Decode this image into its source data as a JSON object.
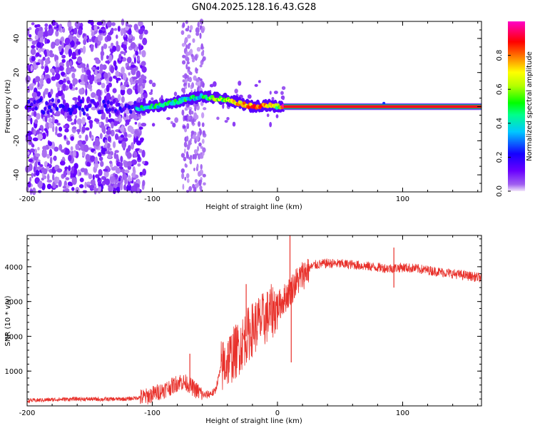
{
  "figure": {
    "title": "GN04.2025.128.16.43.G28"
  },
  "chart_data": [
    {
      "type": "heatmap",
      "name": "spectrogram",
      "xlabel": "Height of straight line (km)",
      "ylabel": "Frequency (Hz)",
      "xlim": [
        -200,
        163
      ],
      "ylim": [
        -50,
        50
      ],
      "xticks": [
        "-200",
        "-100",
        "0",
        "100"
      ],
      "yticks": [
        "-40",
        "-20",
        "0",
        "20",
        "40"
      ],
      "colorbar": {
        "label": "Normalized spectral amplitude",
        "range": [
          0,
          1
        ],
        "ticks": [
          "0.0",
          "0.2",
          "0.4",
          "0.6",
          "0.8"
        ],
        "colormap": "rainbow (violet-blue-cyan-green-yellow-red-magenta)"
      },
      "ridge_points": [
        {
          "x": -200,
          "y": 0,
          "amp": 0.1
        },
        {
          "x": -150,
          "y": 0,
          "amp": 0.25
        },
        {
          "x": -113,
          "y": -1,
          "amp": 0.4
        },
        {
          "x": -100,
          "y": 0,
          "amp": 0.4
        },
        {
          "x": -90,
          "y": 1,
          "amp": 0.45
        },
        {
          "x": -75,
          "y": 4,
          "amp": 0.45
        },
        {
          "x": -60,
          "y": 6,
          "amp": 0.4
        },
        {
          "x": -50,
          "y": 5,
          "amp": 0.55
        },
        {
          "x": -40,
          "y": 4,
          "amp": 0.6
        },
        {
          "x": -30,
          "y": 2,
          "amp": 0.75
        },
        {
          "x": -20,
          "y": 0,
          "amp": 0.8
        },
        {
          "x": -10,
          "y": 1,
          "amp": 0.85
        },
        {
          "x": 0,
          "y": 0,
          "amp": 0.5
        },
        {
          "x": 5,
          "y": 0,
          "amp": 0.9
        },
        {
          "x": 163,
          "y": 0,
          "amp": 0.95
        }
      ]
    },
    {
      "type": "line",
      "name": "snr",
      "xlabel": "Height of straight line (km)",
      "ylabel": "SNR (10 * v/v)",
      "xlim": [
        -200,
        163
      ],
      "ylim": [
        0,
        4900
      ],
      "xticks": [
        "-200",
        "-100",
        "0",
        "100"
      ],
      "yticks": [
        "1000",
        "2000",
        "3000",
        "4000"
      ],
      "color": "#e8302a",
      "series": [
        {
          "name": "SNR",
          "x": [
            -200,
            -180,
            -160,
            -140,
            -120,
            -105,
            -95,
            -85,
            -78,
            -72,
            -65,
            -58,
            -50,
            -45,
            -40,
            -35,
            -30,
            -25,
            -20,
            -15,
            -10,
            -5,
            0,
            5,
            10,
            15,
            20,
            25,
            30,
            40,
            50,
            60,
            70,
            80,
            90,
            100,
            110,
            120,
            130,
            140,
            150,
            163
          ],
          "y": [
            150,
            180,
            200,
            190,
            200,
            260,
            400,
            550,
            700,
            650,
            450,
            300,
            400,
            1100,
            1300,
            1500,
            1700,
            2000,
            2200,
            2400,
            2500,
            2700,
            2850,
            3050,
            3300,
            3550,
            3750,
            3950,
            4050,
            4100,
            4080,
            4060,
            4020,
            3980,
            3950,
            3980,
            3950,
            3900,
            3850,
            3800,
            3750,
            3680
          ]
        }
      ],
      "spikes": [
        {
          "x": -70,
          "y": 1500
        },
        {
          "x": -25,
          "y": 3500
        },
        {
          "x": 10,
          "y": 4900
        },
        {
          "x": 11,
          "y": 1250
        },
        {
          "x": 93,
          "y": 4550
        },
        {
          "x": 93,
          "y": 3400
        }
      ]
    }
  ]
}
